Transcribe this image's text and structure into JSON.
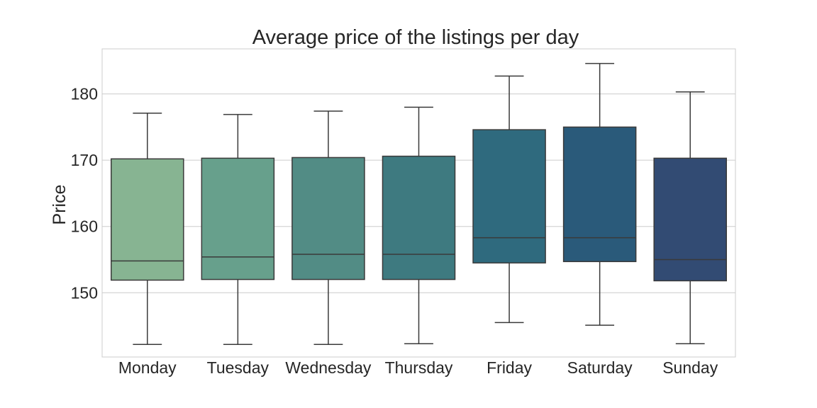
{
  "chart_data": {
    "type": "box",
    "title": "Average price of the listings per day",
    "xlabel": "",
    "ylabel": "Price",
    "ylim": [
      140.3,
      186.8
    ],
    "yticks": [
      150,
      160,
      170,
      180
    ],
    "grid": "horizontal",
    "categories": [
      "Monday",
      "Tuesday",
      "Wednesday",
      "Thursday",
      "Friday",
      "Saturday",
      "Sunday"
    ],
    "boxes": [
      {
        "whisker_low": 142.2,
        "q1": 151.9,
        "median": 154.8,
        "q3": 170.2,
        "whisker_high": 177.1,
        "color": "#87b492"
      },
      {
        "whisker_low": 142.2,
        "q1": 152.0,
        "median": 155.4,
        "q3": 170.3,
        "whisker_high": 176.9,
        "color": "#67a08c"
      },
      {
        "whisker_low": 142.2,
        "q1": 152.0,
        "median": 155.8,
        "q3": 170.4,
        "whisker_high": 177.4,
        "color": "#528c85"
      },
      {
        "whisker_low": 142.3,
        "q1": 152.0,
        "median": 155.8,
        "q3": 170.6,
        "whisker_high": 178.0,
        "color": "#3e7a80"
      },
      {
        "whisker_low": 145.5,
        "q1": 154.5,
        "median": 158.3,
        "q3": 174.6,
        "whisker_high": 182.7,
        "color": "#2f6a7e"
      },
      {
        "whisker_low": 145.1,
        "q1": 154.7,
        "median": 158.3,
        "q3": 175.0,
        "whisker_high": 184.6,
        "color": "#2a5a7a"
      },
      {
        "whisker_low": 142.3,
        "q1": 151.8,
        "median": 155.0,
        "q3": 170.3,
        "whisker_high": 180.3,
        "color": "#324b73"
      }
    ]
  }
}
